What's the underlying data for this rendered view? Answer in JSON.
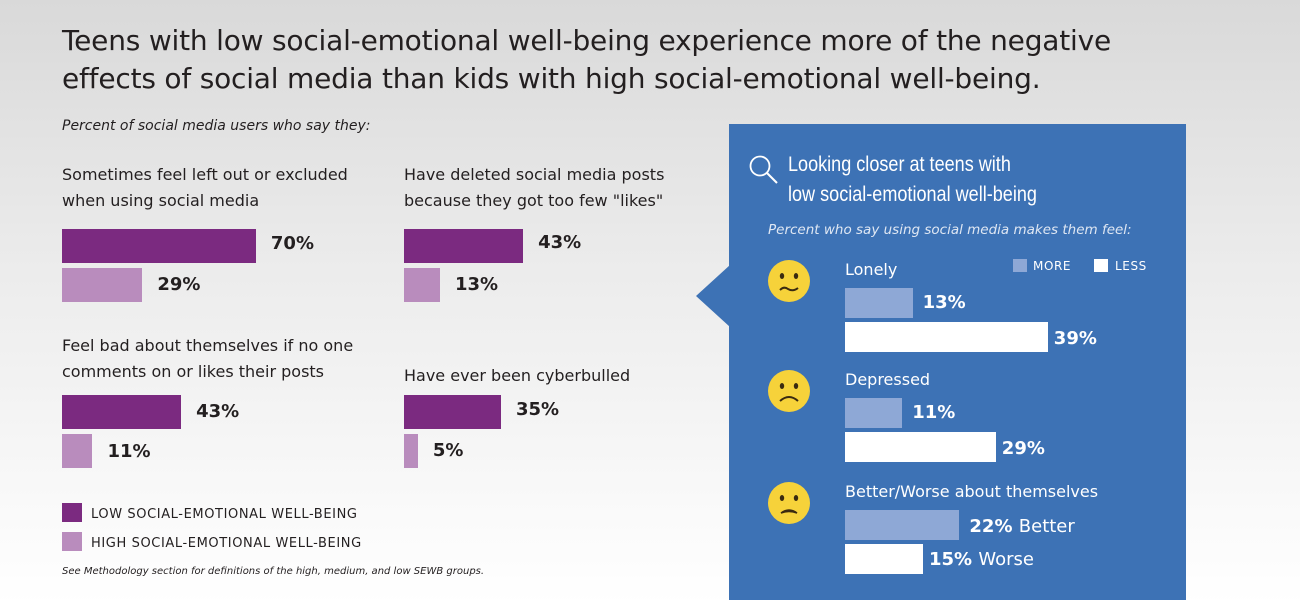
{
  "title_line1": "Teens with low social-emotional well-being experience more of the negative",
  "title_line2": "effects of social media than kids with high social-emotional well-being.",
  "subtitle": "Percent of social media users who say they:",
  "chart_data": [
    {
      "type": "bar",
      "title": "Percent of social media users who say they:",
      "series": [
        {
          "name": "LOW SOCIAL-EMOTIONAL WELL-BEING",
          "values": [
            70,
            43,
            43,
            35
          ]
        },
        {
          "name": "HIGH SOCIAL-EMOTIONAL WELL-BEING",
          "values": [
            29,
            13,
            11,
            5
          ]
        }
      ],
      "categories": [
        "Sometimes feel left out or excluded when using social media",
        "Have deleted social media posts because they got too few \"likes\"",
        "Feel bad about themselves if no one comments on or likes their posts",
        "Have ever been cyberbulled"
      ],
      "xlim": [
        0,
        100
      ]
    },
    {
      "type": "bar",
      "title": "Looking closer at teens with low social-emotional well-being",
      "subtitle": "Percent who say using social media makes them feel:",
      "categories": [
        "Lonely",
        "Depressed",
        "Better/Worse about themselves"
      ],
      "series": [
        {
          "name": "MORE",
          "values": [
            13,
            11,
            22
          ]
        },
        {
          "name": "LESS",
          "values": [
            39,
            29,
            15
          ]
        }
      ],
      "xlim": [
        0,
        100
      ]
    }
  ],
  "left_panels": [
    {
      "label_line1": "Sometimes feel left out or excluded",
      "label_line2": "when using social media",
      "low_label": "70%",
      "high_label": "29%"
    },
    {
      "label_line1": "Have deleted social media posts",
      "label_line2": "because they got too few \"likes\"",
      "low_label": "43%",
      "high_label": "13%"
    },
    {
      "label_line1": "Feel bad about themselves if no one",
      "label_line2": "comments on or likes their posts",
      "low_label": "43%",
      "high_label": "11%"
    },
    {
      "label_line1": "Have ever been cyberbulled",
      "label_line2": "",
      "low_label": "35%",
      "high_label": "5%"
    }
  ],
  "legend": {
    "low": "LOW SOCIAL-EMOTIONAL WELL-BEING",
    "high": "HIGH SOCIAL-EMOTIONAL WELL-BEING",
    "low_color": "#7b2a80",
    "high_color": "#b98cbd"
  },
  "note": "See Methodology section for definitions of the high, medium, and low SEWB groups.",
  "panel": {
    "title_line1": "Looking closer at teens with",
    "title_line2": "low social-emotional well-being",
    "subtitle": "Percent who say using social media makes them feel:",
    "legend_more": "MORE",
    "legend_less": "LESS",
    "bg_color": "#3d72b5",
    "more_color": "#8ea8d6",
    "less_color": "#ffffff",
    "items": [
      {
        "label": "Lonely",
        "more_label": "13%",
        "less_label": "39%",
        "more_word": "",
        "less_word": "",
        "icon": "uneasy-face-icon"
      },
      {
        "label": "Depressed",
        "more_label": "11%",
        "less_label": "29%",
        "more_word": "",
        "less_word": "",
        "icon": "sad-face-icon"
      },
      {
        "label": "Better/Worse about themselves",
        "more_label": "22%",
        "less_label": "15%",
        "more_word": "Better",
        "less_word": "Worse",
        "icon": "frown-face-icon"
      }
    ]
  }
}
